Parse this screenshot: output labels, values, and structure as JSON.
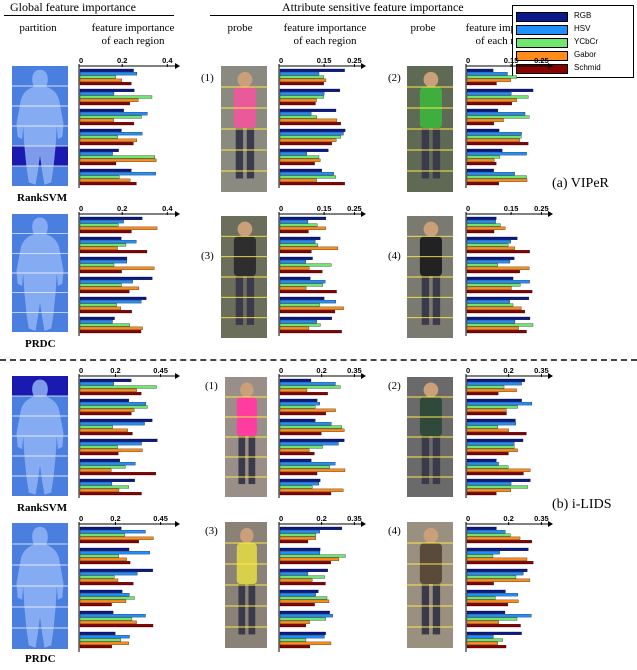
{
  "headers": {
    "global": "Global  feature importance",
    "attribute": "Attribute sensitive feature importance",
    "partition": "partition",
    "feature_importance": "feature importance\nof each region",
    "probe": "probe"
  },
  "legend": [
    {
      "name": "RGB",
      "color": "#0a1a8c"
    },
    {
      "name": "HSV",
      "color": "#1e90ff"
    },
    {
      "name": "YCbCr",
      "color": "#6fe66f"
    },
    {
      "name": "Gabor",
      "color": "#ff8c1a"
    },
    {
      "name": "Schmid",
      "color": "#8b0000"
    }
  ],
  "datasets": [
    "(a) VIPeR",
    "(b) i-LIDS"
  ],
  "methods": [
    "RankSVM",
    "PRDC"
  ],
  "probe_labels": [
    "(1)",
    "(2)",
    "(3)",
    "(4)"
  ],
  "axes": {
    "viper_global": [
      "0",
      "0.2",
      "0.4"
    ],
    "viper_attr": [
      "0",
      "0.15",
      "0.25"
    ],
    "ilids_global": [
      "0",
      "0.2",
      "0.45"
    ],
    "ilids_attr": [
      "0",
      "0.2",
      "0.35"
    ]
  }
}
